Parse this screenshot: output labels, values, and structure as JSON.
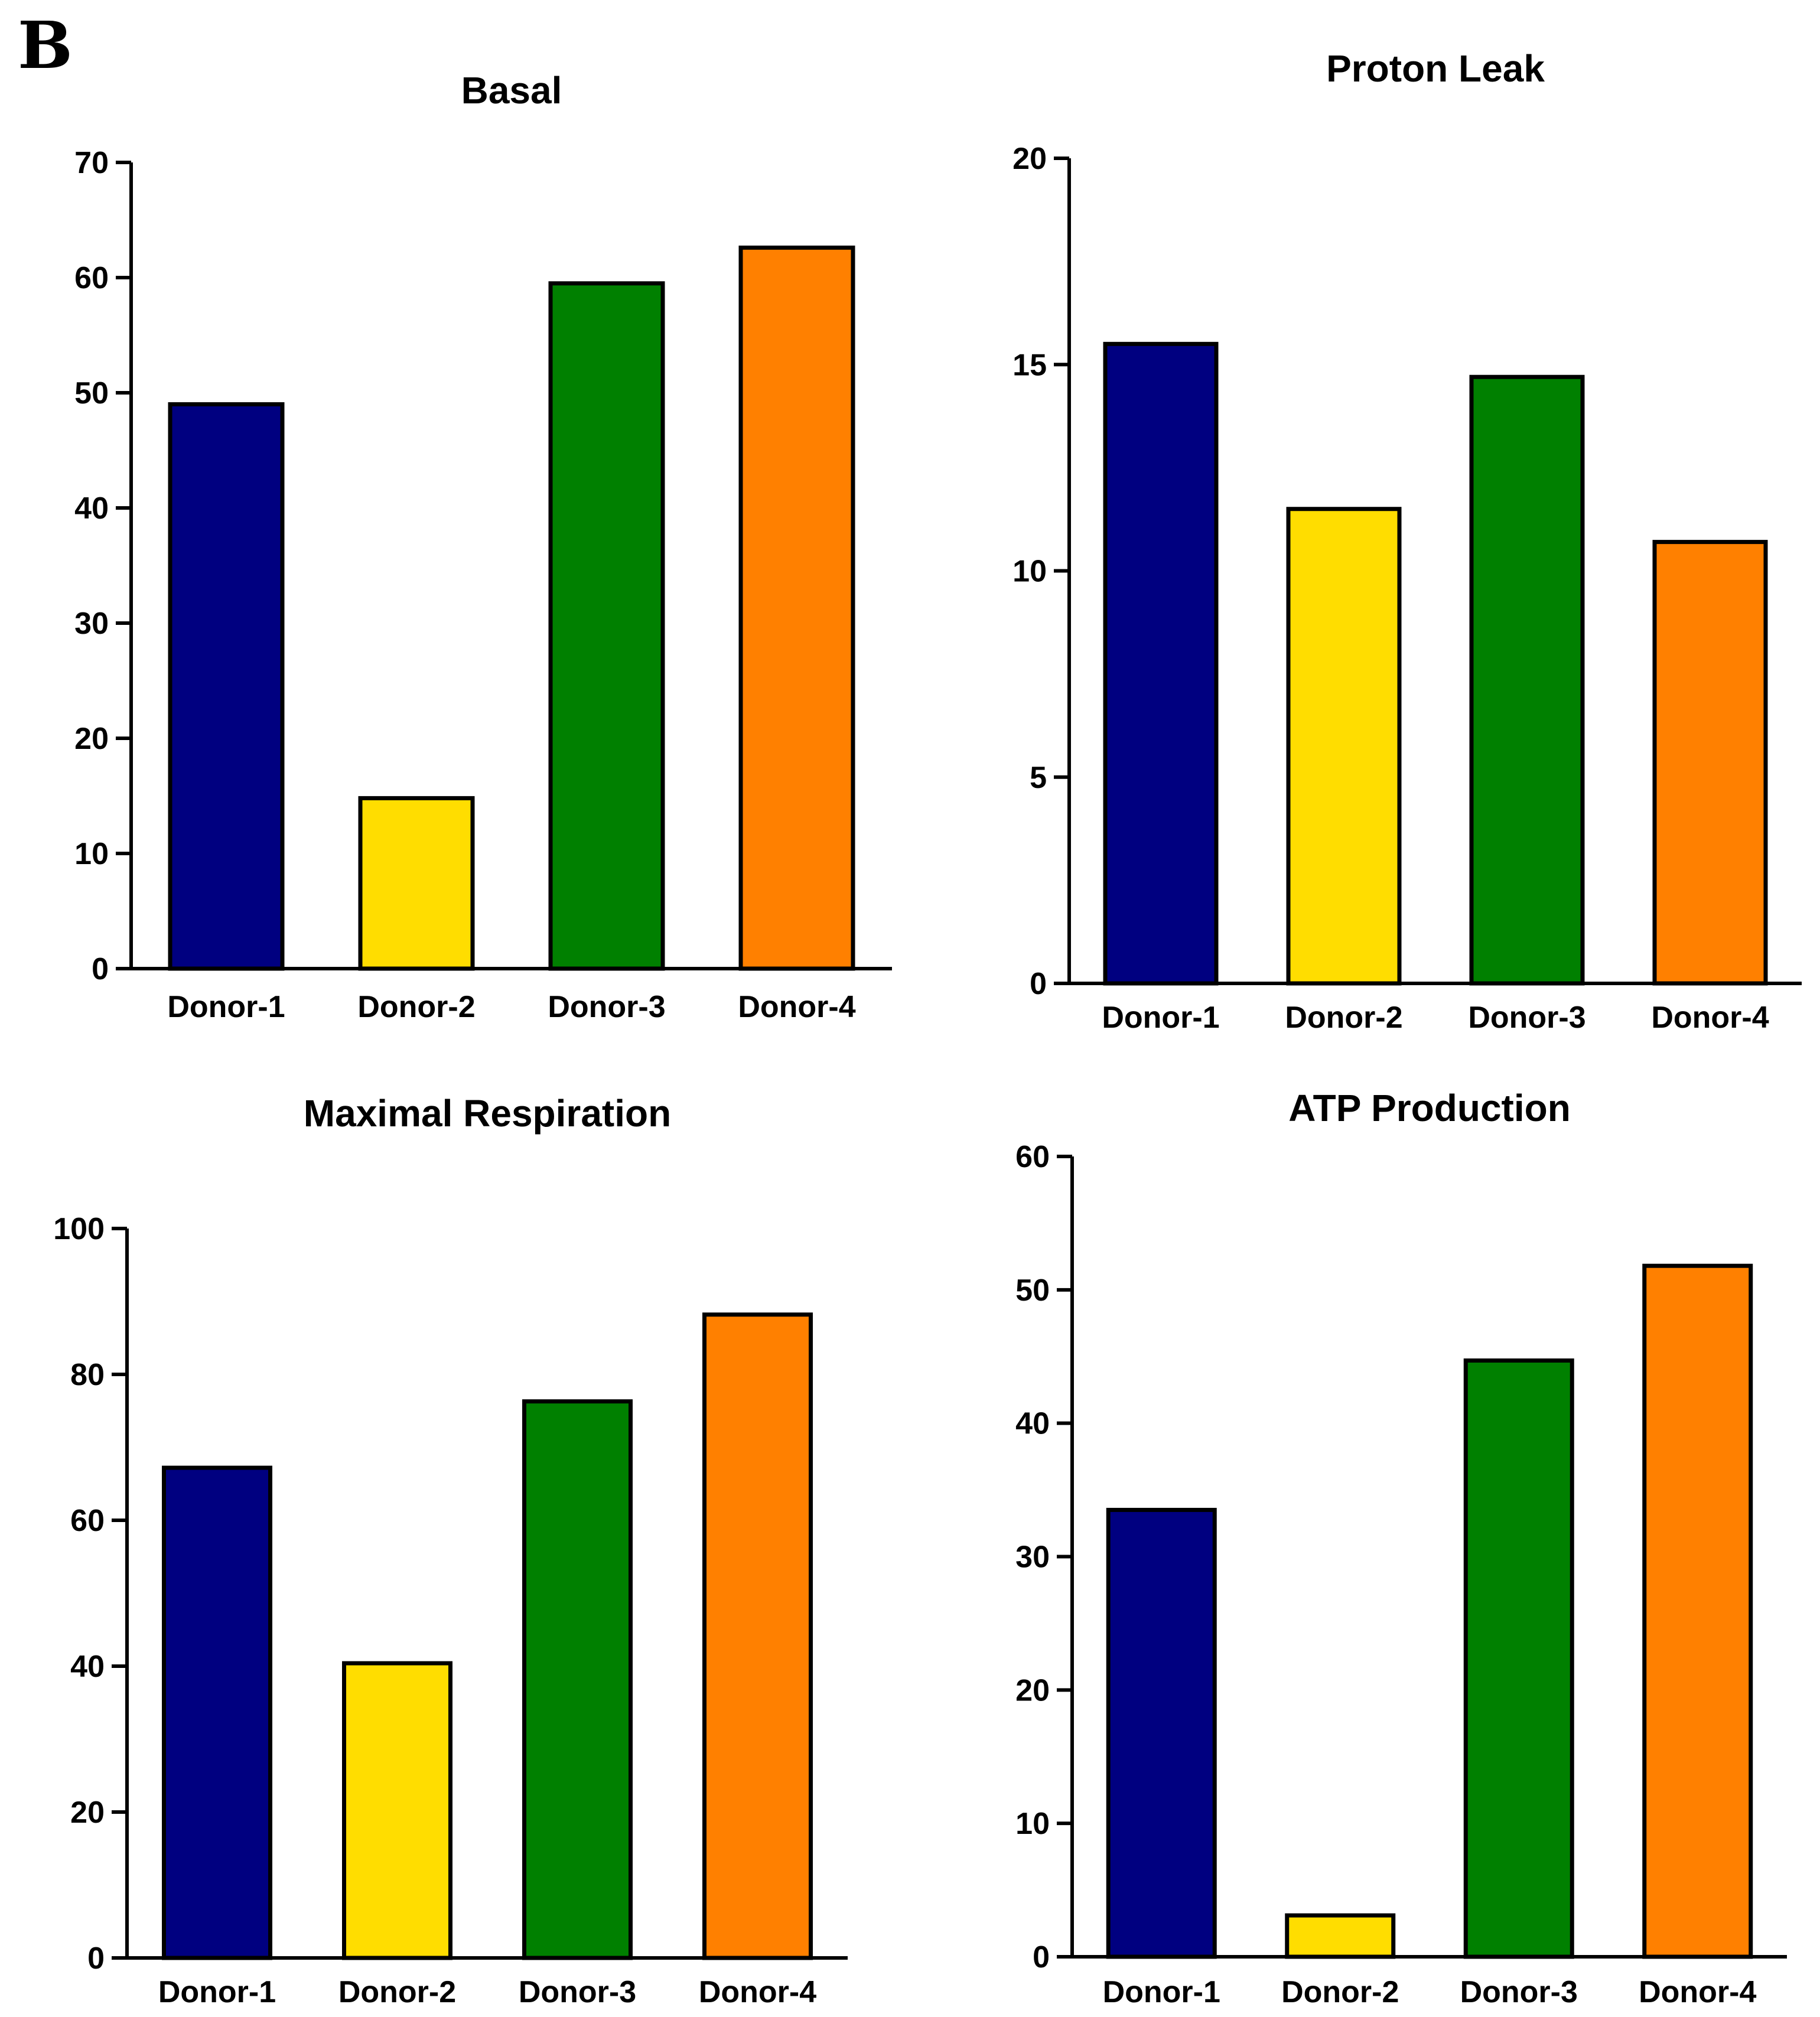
{
  "figure_label": "B",
  "colors": {
    "Donor-1": "#000080",
    "Donor-2": "#FFDD00",
    "Donor-3": "#008000",
    "Donor-4": "#FF8000",
    "axis": "#000000"
  },
  "chart_data": [
    {
      "type": "bar",
      "title": "Basal",
      "categories": [
        "Donor-1",
        "Donor-2",
        "Donor-3",
        "Donor-4"
      ],
      "values": [
        49,
        14.8,
        59.5,
        62.6
      ],
      "ylim": [
        0,
        70
      ],
      "yticks": [
        0,
        10,
        20,
        30,
        40,
        50,
        60,
        70
      ],
      "xlabel": "",
      "ylabel": ""
    },
    {
      "type": "bar",
      "title": "Proton Leak",
      "categories": [
        "Donor-1",
        "Donor-2",
        "Donor-3",
        "Donor-4"
      ],
      "values": [
        15.5,
        11.5,
        14.7,
        10.7
      ],
      "ylim": [
        0,
        20
      ],
      "yticks": [
        0,
        5,
        10,
        15,
        20
      ],
      "xlabel": "",
      "ylabel": ""
    },
    {
      "type": "bar",
      "title": "Maximal Respiration",
      "categories": [
        "Donor-1",
        "Donor-2",
        "Donor-3",
        "Donor-4"
      ],
      "values": [
        67.2,
        40.4,
        76.3,
        88.2
      ],
      "ylim": [
        0,
        100
      ],
      "yticks": [
        0,
        20,
        40,
        60,
        80,
        100
      ],
      "xlabel": "",
      "ylabel": ""
    },
    {
      "type": "bar",
      "title": "ATP Production",
      "categories": [
        "Donor-1",
        "Donor-2",
        "Donor-3",
        "Donor-4"
      ],
      "values": [
        33.5,
        3.1,
        44.7,
        51.8
      ],
      "ylim": [
        0,
        60
      ],
      "yticks": [
        0,
        10,
        20,
        30,
        40,
        50,
        60
      ],
      "xlabel": "",
      "ylabel": ""
    }
  ]
}
